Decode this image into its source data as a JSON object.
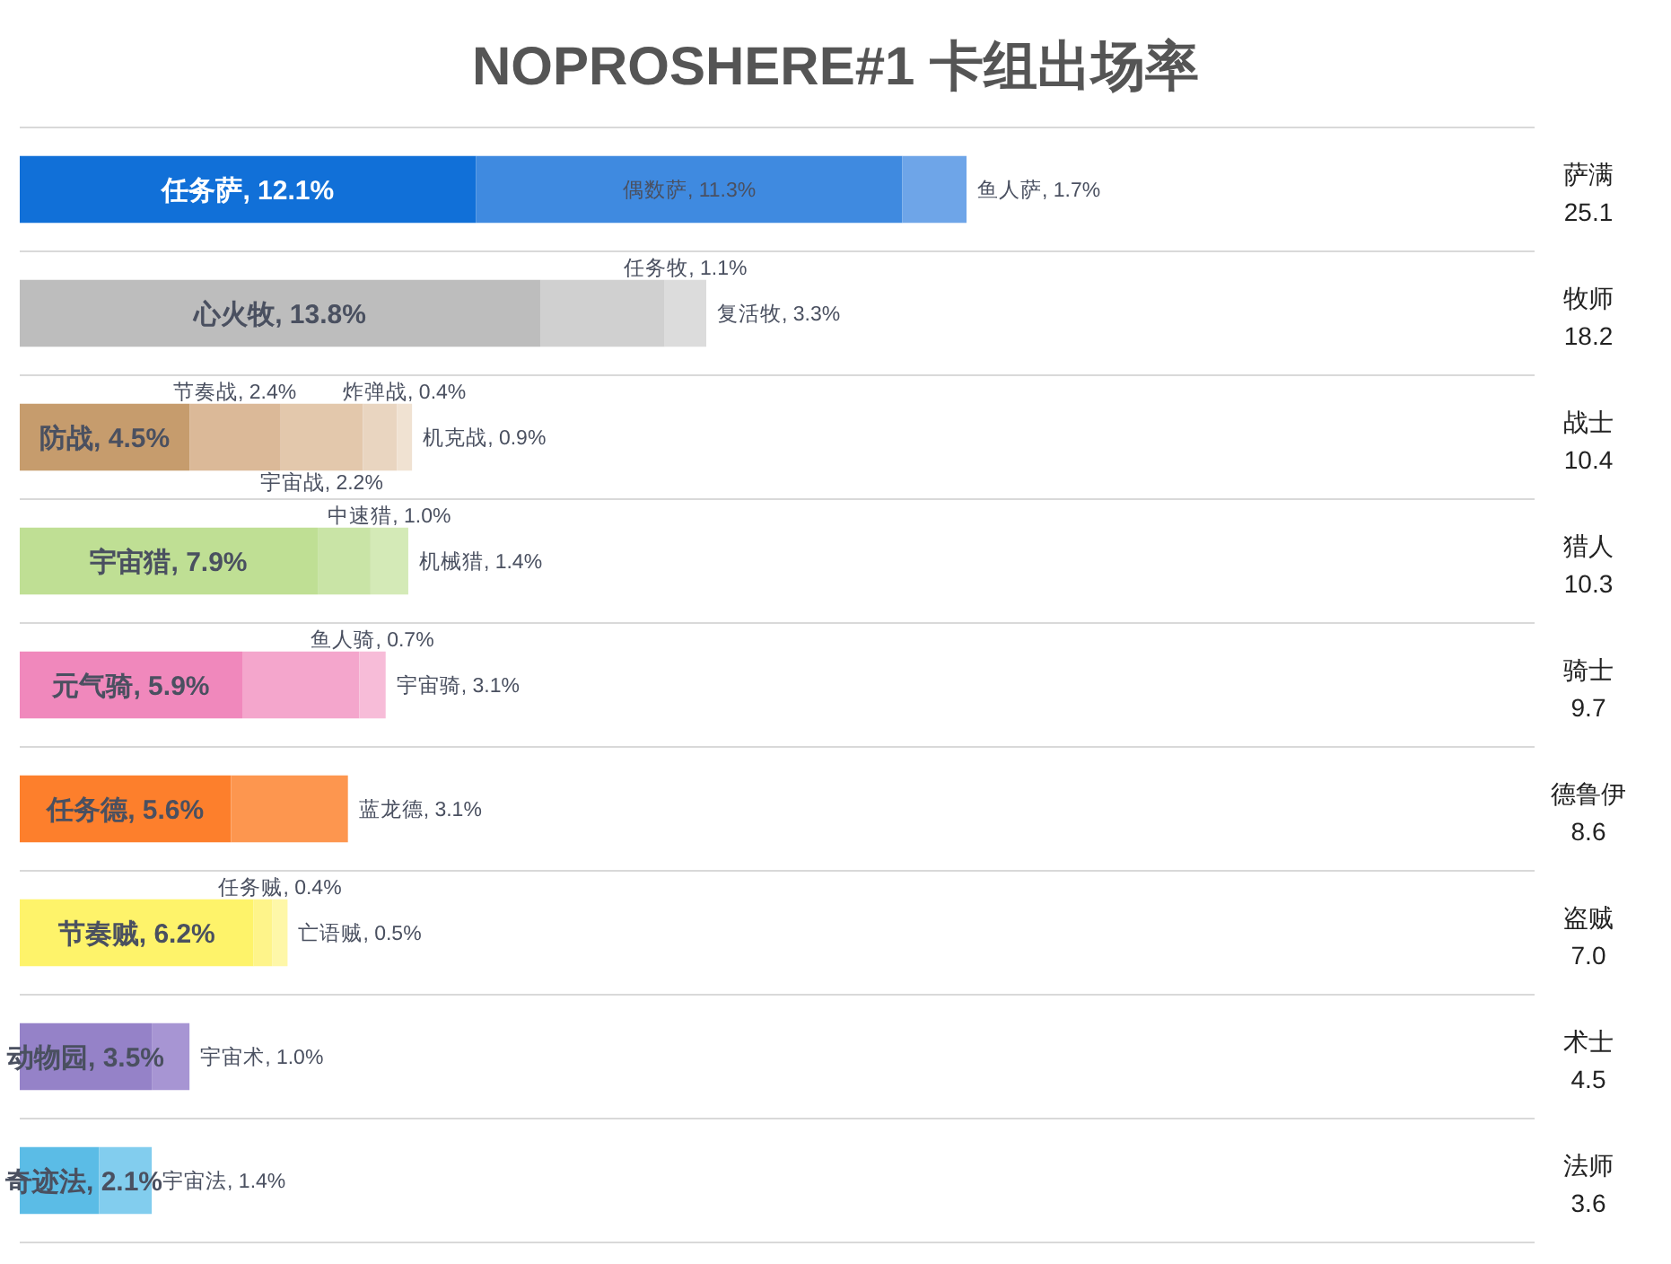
{
  "chart_data": {
    "type": "bar",
    "orientation": "horizontal",
    "stacked": true,
    "title": "NOPROSHERE#1 卡组出场率",
    "categories": [
      "萨满 25.1",
      "牧师 18.2",
      "战士 10.4",
      "猎人 10.3",
      "骑士 9.7",
      "德鲁伊 8.6",
      "盗贼 7.0",
      "术士 4.5",
      "法师 3.6"
    ],
    "series": [
      {
        "values": [
          12.1,
          13.8,
          4.5,
          7.9,
          5.9,
          5.6,
          6.2,
          3.5,
          2.1
        ],
        "colors": [
          "#1170d8",
          "#bdbdbd",
          "#c69c6d",
          "#bfdf94",
          "#f088bc",
          "#fd7f2c",
          "#fef36a",
          "#9582c8",
          "#5bbce6"
        ],
        "value_labels": [
          "任务萨, 12.1%",
          "心火牧, 13.8%",
          "防战, 4.5%",
          "宇宙猎, 7.9%",
          "元气骑, 5.9%",
          "任务德, 5.6%",
          "节奏贼, 6.2%",
          "动物园, 3.5%",
          "奇迹法, 2.1%"
        ]
      },
      {
        "values": [
          11.3,
          3.3,
          2.4,
          1.4,
          3.1,
          3.1,
          0.5,
          1.0,
          1.4
        ],
        "colors": [
          "#3f8ae0",
          "#d0d0d0",
          "#dbb998",
          "#c9e4a6",
          "#f4a6cc",
          "#fd964f",
          "#fef48a",
          "#a795d3",
          "#82cdee"
        ],
        "value_labels": [
          "偶数萨, 11.3%",
          "复活牧, 3.3%",
          "节奏战, 2.4%",
          "机械猎, 1.4%",
          "宇宙骑, 3.1%",
          "蓝龙德, 3.1%",
          "亡语贼, 0.5%",
          "宇宙术, 1.0%",
          "宇宙法, 1.4%"
        ]
      },
      {
        "values": [
          1.7,
          1.1,
          2.2,
          1.0,
          0.7,
          null,
          0.4,
          null,
          null
        ],
        "colors": [
          "#6ea5e8",
          "#dcdcdc",
          "#e3c8ac",
          "#d4eab7",
          "#f7bcd8",
          null,
          "#fef7a8",
          null,
          null
        ],
        "value_labels": [
          "鱼人萨, 1.7%",
          "任务牧, 1.1%",
          "宇宙战, 2.2%",
          "中速猎, 1.0%",
          "鱼人骑, 0.7%",
          null,
          "任务贼, 0.4%",
          null,
          null
        ]
      },
      {
        "values": [
          null,
          null,
          0.9,
          null,
          null,
          null,
          null,
          null,
          null
        ],
        "colors": [
          null,
          null,
          "#e9d5c0",
          null,
          null,
          null,
          null,
          null,
          null
        ],
        "value_labels": [
          null,
          null,
          "机克战, 0.9%",
          null,
          null,
          null,
          null,
          null,
          null
        ]
      },
      {
        "values": [
          null,
          null,
          0.4,
          null,
          null,
          null,
          null,
          null,
          null
        ],
        "colors": [
          null,
          null,
          "#f0e2d2",
          null,
          null,
          null,
          null,
          null,
          null
        ],
        "value_labels": [
          null,
          null,
          "炸弹战, 0.4%",
          null,
          null,
          null,
          null,
          null,
          null
        ]
      }
    ],
    "grid": "y"
  }
}
